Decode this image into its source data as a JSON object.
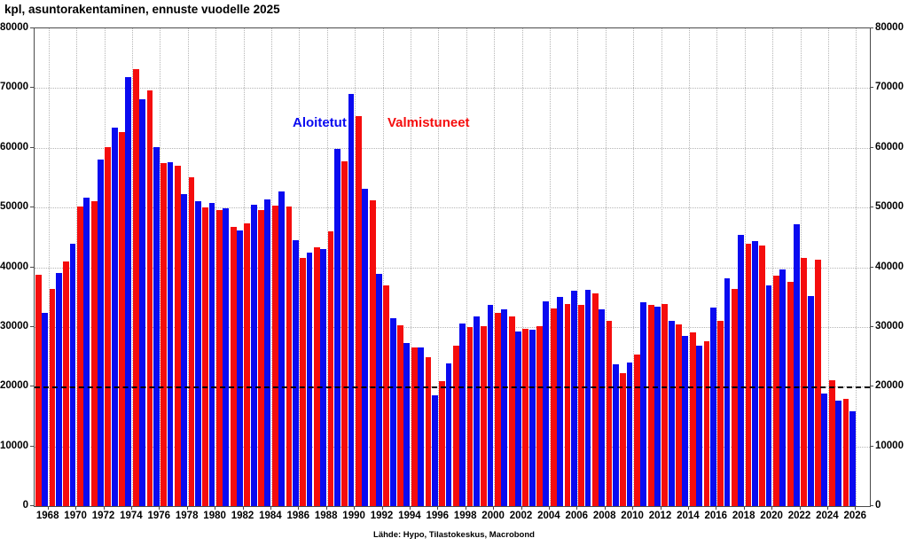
{
  "title": "kpl, asuntorakentaminen, ennuste vuodelle 2025",
  "source": "Lähde: Hypo, Tilastokeskus, Macrobond",
  "legend": {
    "aloitetut_label": "Aloitetut",
    "valmistuneet_label": "Valmistuneet"
  },
  "colors": {
    "aloitetut": "#0a0af0",
    "valmistuneet": "#f50d0d",
    "grid": "#b5b5b5",
    "frame": "#4a4a4a",
    "reference_line": "#000000",
    "text": "#000000",
    "background": "#ffffff"
  },
  "chart_data": {
    "type": "bar",
    "title": "kpl, asuntorakentaminen, ennuste vuodelle 2025",
    "xlabel": "",
    "ylabel": "kpl",
    "ylim": [
      0,
      80000
    ],
    "ytick_step": 10000,
    "y_tick_labels": [
      "0",
      "10000",
      "20000",
      "30000",
      "40000",
      "50000",
      "60000",
      "70000",
      "80000"
    ],
    "x_axis_end_year": 2026,
    "x_tick_labels": [
      "1968",
      "1970",
      "1972",
      "1974",
      "1976",
      "1978",
      "1980",
      "1982",
      "1984",
      "1986",
      "1988",
      "1990",
      "1992",
      "1994",
      "1996",
      "1998",
      "2000",
      "2002",
      "2004",
      "2006",
      "2008",
      "2010",
      "2012",
      "2014",
      "2016",
      "2018",
      "2020",
      "2022",
      "2024",
      "2026"
    ],
    "grid": true,
    "legend_position": "top-center-inside",
    "reference_line_y": 20000,
    "bar_order": [
      "valmistuneet",
      "aloitetut"
    ],
    "years": [
      1967,
      1968,
      1969,
      1970,
      1971,
      1972,
      1973,
      1974,
      1975,
      1976,
      1977,
      1978,
      1979,
      1980,
      1981,
      1982,
      1983,
      1984,
      1985,
      1986,
      1987,
      1988,
      1989,
      1990,
      1991,
      1992,
      1993,
      1994,
      1995,
      1996,
      1997,
      1998,
      1999,
      2000,
      2001,
      2002,
      2003,
      2004,
      2005,
      2006,
      2007,
      2008,
      2009,
      2010,
      2011,
      2012,
      2013,
      2014,
      2015,
      2016,
      2017,
      2018,
      2019,
      2020,
      2021,
      2022,
      2023,
      2024,
      2025
    ],
    "series": [
      {
        "name": "Valmistuneet",
        "color_key": "valmistuneet",
        "values": [
          38800,
          36300,
          40900,
          50100,
          51000,
          60100,
          62600,
          73200,
          69600,
          57500,
          57000,
          55100,
          50000,
          49600,
          46700,
          47300,
          49600,
          50300,
          50200,
          41600,
          43300,
          46000,
          57800,
          65300,
          51200,
          36900,
          30300,
          26600,
          25000,
          21000,
          26900,
          30000,
          30200,
          32400,
          31700,
          29700,
          30200,
          33100,
          33800,
          33700,
          35600,
          31000,
          22200,
          25400,
          33700,
          33900,
          30400,
          29100,
          27600,
          31000,
          36300,
          44000,
          43600,
          38600,
          37500,
          41600,
          41300,
          21100,
          17900
        ]
      },
      {
        "name": "Aloitetut",
        "color_key": "aloitetut",
        "values": [
          32300,
          39000,
          43900,
          51600,
          58100,
          63400,
          71900,
          68200,
          60100,
          57600,
          52300,
          51000,
          50800,
          49800,
          46100,
          50400,
          51300,
          52700,
          44500,
          42500,
          43100,
          59800,
          69000,
          53200,
          38900,
          31400,
          27300,
          26500,
          18600,
          23900,
          30600,
          31700,
          33700,
          33000,
          29200,
          29600,
          34300,
          35000,
          36000,
          36200,
          32900,
          23700,
          24000,
          34200,
          33400,
          31000,
          28500,
          26800,
          33300,
          38100,
          45400,
          44400,
          36900,
          39600,
          47200,
          35200,
          18800,
          17600,
          15900
        ]
      }
    ]
  }
}
